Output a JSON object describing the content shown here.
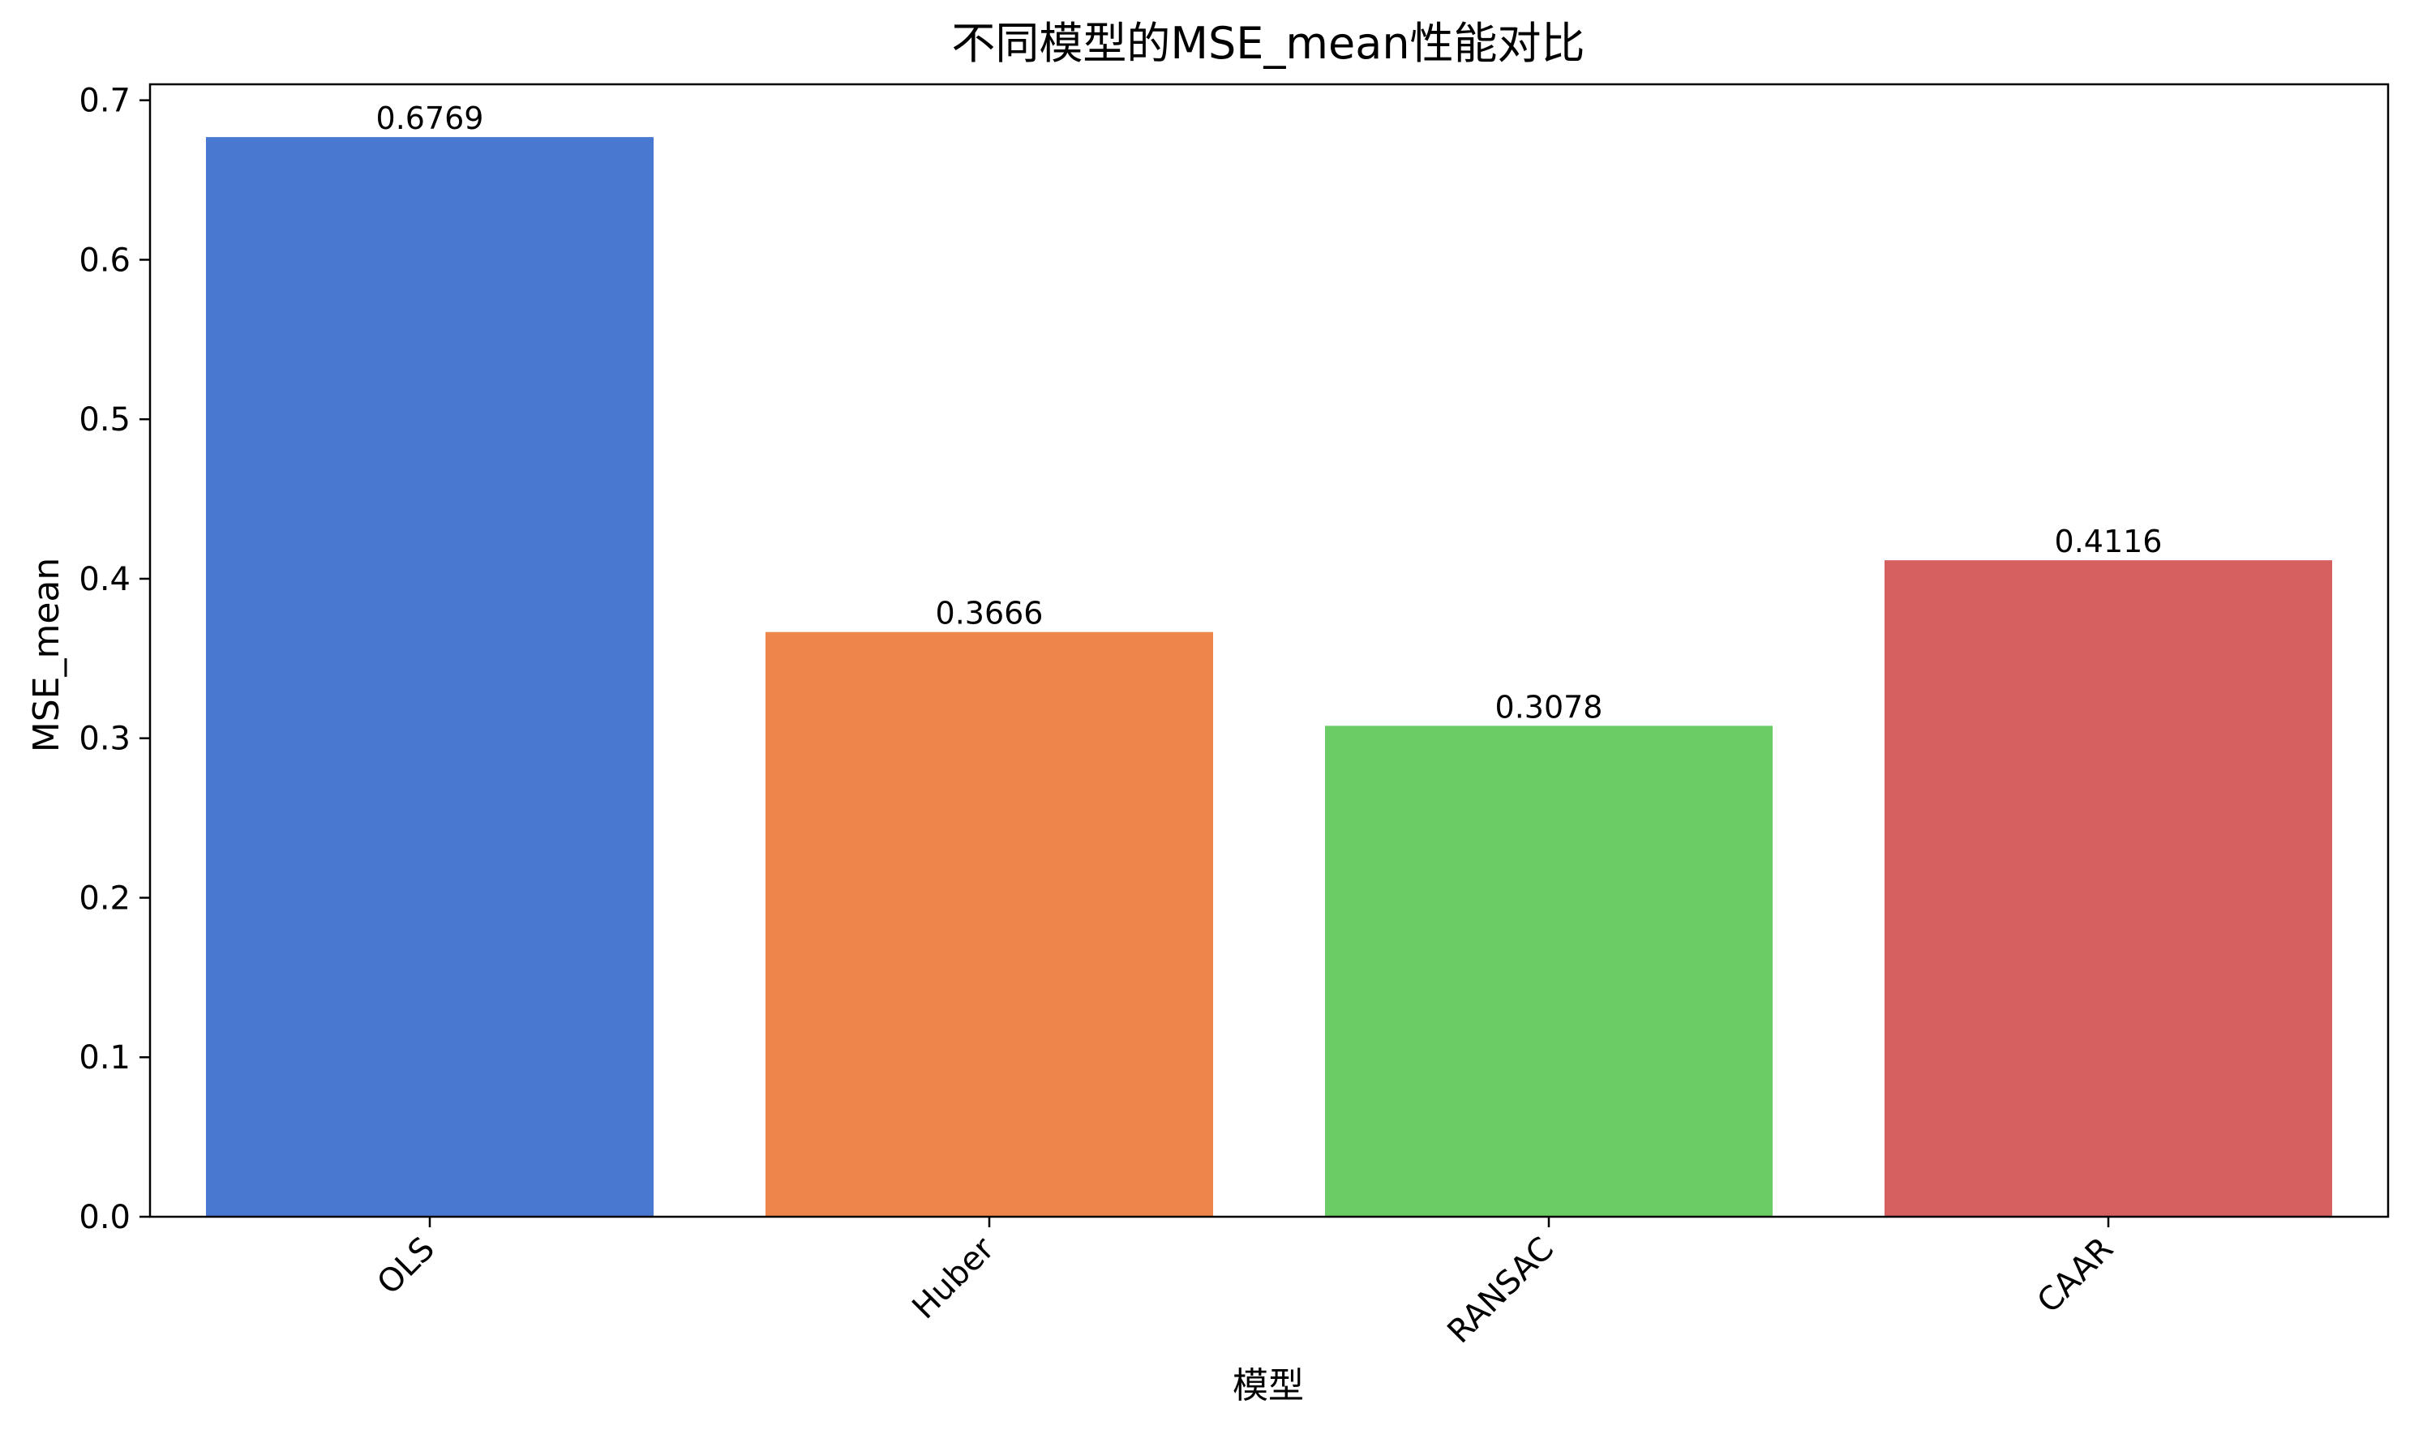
{
  "chart_data": {
    "type": "bar",
    "title": "不同模型的MSE_mean性能对比",
    "xlabel": "模型",
    "ylabel": "MSE_mean",
    "categories": [
      "OLS",
      "Huber",
      "RANSAC",
      "CAAR"
    ],
    "values": [
      0.6769,
      0.3666,
      0.3078,
      0.4116
    ],
    "value_labels": [
      "0.6769",
      "0.3666",
      "0.3078",
      "0.4116"
    ],
    "colors": [
      "#4878cf",
      "#ee854a",
      "#6acc64",
      "#d65f5f"
    ],
    "ylim": [
      0,
      0.71
    ],
    "yticks": [
      0.0,
      0.1,
      0.2,
      0.3,
      0.4,
      0.5,
      0.6,
      0.7
    ],
    "ytick_labels": [
      "0.0",
      "0.1",
      "0.2",
      "0.3",
      "0.4",
      "0.5",
      "0.6",
      "0.7"
    ],
    "xtick_rotation": 45,
    "grid": false,
    "legend": false
  }
}
